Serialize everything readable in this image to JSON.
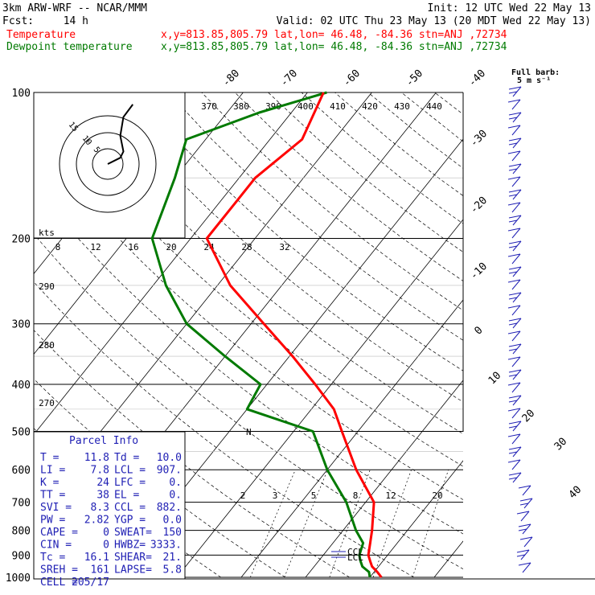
{
  "header": {
    "title": "3km ARW-WRF -- NCAR/MMM",
    "init": "Init: 12 UTC Wed 22 May 13",
    "fcst_label": "Fcst:",
    "fcst_value": "14 h",
    "valid": "Valid: 02 UTC Thu 23 May 13 (20 MDT Wed 22 May 13)",
    "temp_label": "Temperature",
    "dew_label": "Dewpoint temperature",
    "temp_info": "x,y=813.85,805.79   lat,lon= 46.48, -84.36   stn=ANJ ,72734",
    "dew_info": "x,y=813.85,805.79   lat,lon= 46.48, -84.36   stn=ANJ ,72734"
  },
  "wind_key": {
    "line1": "Full barb:",
    "line2": "5 m s⁻¹"
  },
  "kts_label": "kts",
  "parcel": {
    "title": "Parcel Info",
    "rows": [
      [
        "T  =",
        "11.8",
        "Td =",
        "10.0"
      ],
      [
        "LI =",
        "7.8",
        "LCL =",
        "907."
      ],
      [
        "K  =",
        "24",
        "LFC =",
        "0."
      ],
      [
        "TT =",
        "38",
        "EL  =",
        "0."
      ],
      [
        "SVI =",
        "8.3",
        "CCL =",
        "882."
      ],
      [
        "PW =",
        "2.82",
        "YGP =",
        "0.0"
      ],
      [
        "CAPE =",
        "0",
        "SWEAT=",
        "150"
      ],
      [
        "CIN =",
        "0",
        "HWBZ=",
        "3333."
      ],
      [
        "Tc =",
        "16.1",
        "SHEAR=",
        "21."
      ],
      [
        "SREH =",
        "161",
        "LAPSE=",
        "5.8"
      ],
      [
        "CELL =",
        "205/17",
        "",
        ""
      ]
    ]
  },
  "markers": {
    "ccl": "CCL",
    "lcl": "LCL",
    "n": "N"
  },
  "colors": {
    "temperature": "#ff0000",
    "dewpoint": "#007a00",
    "hodograph": "#000000",
    "barbs": "#1f1fb4",
    "text_blue": "#1f1fb4"
  },
  "chart_data": {
    "type": "line",
    "title": "3km ARW-WRF -- NCAR/MMM",
    "y_axis": "pressure (hPa), log scale",
    "pressure_ticks": [
      100,
      200,
      300,
      400,
      500,
      600,
      700,
      800,
      900,
      1000
    ],
    "isotherm_labels": [
      -80,
      -70,
      -60,
      -50,
      -40,
      -30,
      -20,
      -10,
      0,
      10,
      20,
      30,
      40
    ],
    "theta_e_labels": [
      370,
      380,
      390,
      400,
      410,
      420,
      430,
      440
    ],
    "mixing_ratio_labels": [
      2,
      3,
      5,
      8,
      12,
      20
    ],
    "dry_adiabat_labels": [
      290,
      280,
      270
    ],
    "hodograph_speed_labels": [
      "8",
      "12",
      "16",
      "20",
      "24",
      "28",
      "32"
    ],
    "hodograph_ring_labels": [
      "15",
      "10",
      "5"
    ],
    "series": [
      {
        "name": "Temperature",
        "points": [
          [
            1000,
            11.8
          ],
          [
            975,
            10.5
          ],
          [
            950,
            9.0
          ],
          [
            925,
            8.0
          ],
          [
            900,
            7.0
          ],
          [
            850,
            5.8
          ],
          [
            800,
            4.5
          ],
          [
            700,
            1.3
          ],
          [
            600,
            -5.5
          ],
          [
            500,
            -12.5
          ],
          [
            450,
            -16.5
          ],
          [
            400,
            -22.5
          ],
          [
            350,
            -29.5
          ],
          [
            300,
            -38.0
          ],
          [
            250,
            -48.0
          ],
          [
            200,
            -57.5
          ],
          [
            175,
            -57.5
          ],
          [
            150,
            -57.5
          ],
          [
            125,
            -55.0
          ],
          [
            100,
            -57.5
          ]
        ]
      },
      {
        "name": "Dewpoint temperature",
        "points": [
          [
            1000,
            10.0
          ],
          [
            975,
            9.2
          ],
          [
            950,
            7.5
          ],
          [
            925,
            6.5
          ],
          [
            900,
            5.6
          ],
          [
            850,
            4.7
          ],
          [
            800,
            2.0
          ],
          [
            700,
            -3.0
          ],
          [
            600,
            -10.0
          ],
          [
            500,
            -17.0
          ],
          [
            450,
            -30.0
          ],
          [
            400,
            -31.0
          ],
          [
            350,
            -40.0
          ],
          [
            300,
            -50.0
          ],
          [
            250,
            -58.0
          ],
          [
            200,
            -66.0
          ],
          [
            150,
            -70.0
          ],
          [
            125,
            -73.0
          ],
          [
            110,
            -65.0
          ],
          [
            100,
            -57.0
          ]
        ]
      }
    ],
    "hodograph": [
      [
        0.0,
        0.0
      ],
      [
        4.0,
        2.0
      ],
      [
        5.0,
        4.0
      ],
      [
        4.0,
        9.0
      ],
      [
        5.0,
        15.0
      ],
      [
        8.0,
        19.0
      ]
    ]
  }
}
